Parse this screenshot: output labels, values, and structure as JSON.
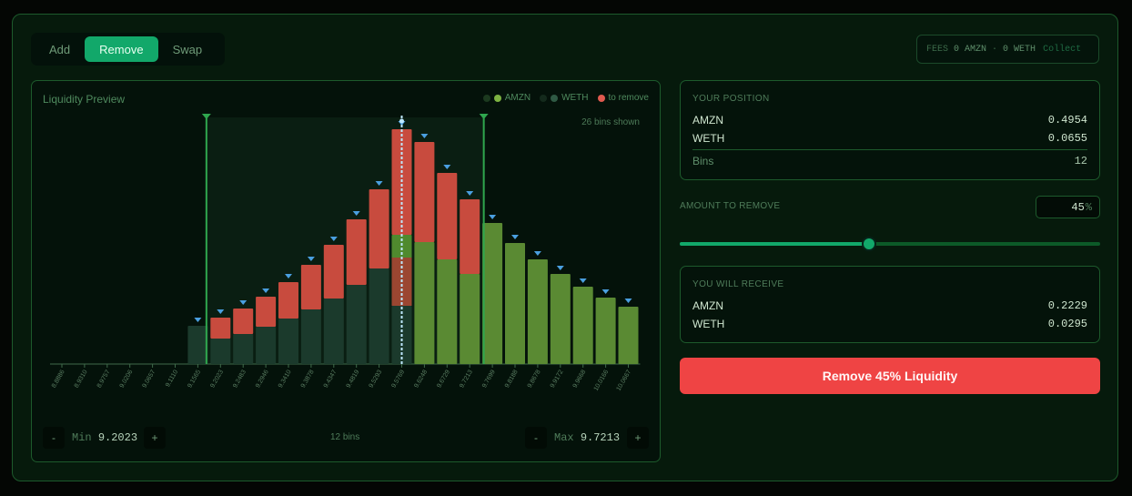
{
  "tabs": [
    {
      "label": "Add",
      "active": false
    },
    {
      "label": "Remove",
      "active": true
    },
    {
      "label": "Swap",
      "active": false
    }
  ],
  "fees": {
    "label": "FEES",
    "amzn": "0 AMZN",
    "dot": "·",
    "weth": "0 WETH",
    "collect": "Collect"
  },
  "chart": {
    "title": "Liquidity Preview",
    "legend": [
      {
        "label": "AMZN",
        "colors": [
          "#1c3a1f",
          "#7db342"
        ]
      },
      {
        "label": "WETH",
        "colors": [
          "#142a1c",
          "#2f5a44"
        ]
      },
      {
        "label": "to remove",
        "colors": [
          "#e05a4f"
        ]
      }
    ],
    "bins_shown": "26 bins shown",
    "range": {
      "min_label": "Min",
      "min_value": "9.2023",
      "max_label": "Max",
      "max_value": "9.7213",
      "minus": "-",
      "plus": "+",
      "bins": "12 bins"
    }
  },
  "chart_data": {
    "type": "bar",
    "stacked": true,
    "categories": [
      "8.8886",
      "8.9310",
      "8.9757",
      "9.0206",
      "9.0657",
      "9.1110",
      "9.1565",
      "9.2023",
      "9.2483",
      "9.2946",
      "9.3410",
      "9.3878",
      "9.4347",
      "9.4819",
      "9.5293",
      "9.5769",
      "9.6248",
      "9.6729",
      "9.7213",
      "9.7699",
      "9.8188",
      "9.8678",
      "9.9172",
      "9.9668",
      "10.0166",
      "10.0667"
    ],
    "series": [
      {
        "name": "WETH",
        "color": "#1b3a2c",
        "values": [
          0,
          0,
          0,
          0,
          0,
          0,
          42,
          28,
          33,
          41,
          50,
          60,
          72,
          87,
          105,
          64,
          0,
          0,
          0,
          0,
          0,
          0,
          0,
          0,
          0,
          0
        ]
      },
      {
        "name": "AMZN",
        "color": "#5a8a33",
        "values": [
          0,
          0,
          0,
          0,
          0,
          0,
          0,
          0,
          0,
          0,
          0,
          0,
          0,
          0,
          0,
          78,
          134,
          115,
          99,
          155,
          133,
          115,
          99,
          85,
          73,
          63
        ]
      },
      {
        "name": "to remove",
        "color": "#c84b3e",
        "values": [
          0,
          0,
          0,
          0,
          0,
          0,
          0,
          23,
          28,
          33,
          40,
          49,
          59,
          72,
          87,
          116,
          110,
          95,
          82,
          0,
          0,
          0,
          0,
          0,
          0,
          0
        ]
      }
    ],
    "active_index": 15,
    "range_start_index": 7,
    "range_end_index": 18,
    "colors": {
      "weth": "#1b3a2c",
      "amzn": "#5a8a33",
      "remove": "#c84b3e",
      "marker": "#4a9fe0",
      "range": "#2fa64e"
    }
  },
  "position": {
    "title": "YOUR POSITION",
    "rows": [
      {
        "label": "AMZN",
        "value": "0.4954"
      },
      {
        "label": "WETH",
        "value": "0.0655"
      }
    ],
    "bins_label": "Bins",
    "bins_value": "12"
  },
  "amount": {
    "label": "AMOUNT TO REMOVE",
    "value": "45",
    "suffix": "%",
    "percent": 45
  },
  "receive": {
    "title": "YOU WILL RECEIVE",
    "rows": [
      {
        "label": "AMZN",
        "value": "0.2229"
      },
      {
        "label": "WETH",
        "value": "0.0295"
      }
    ]
  },
  "action": {
    "label": "Remove 45% Liquidity"
  }
}
